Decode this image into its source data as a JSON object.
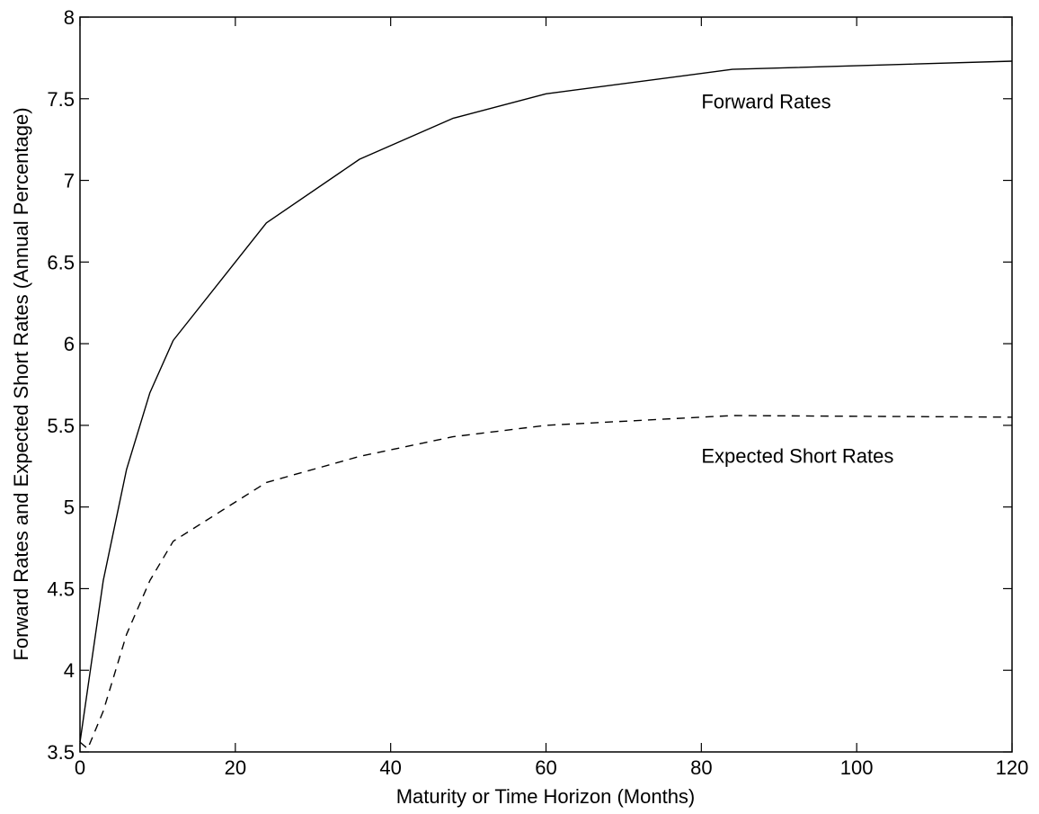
{
  "chart_data": {
    "type": "line",
    "title": "",
    "xlabel": "Maturity or Time Horizon (Months)",
    "ylabel": "Forward Rates and Expected Short Rates (Annual Percentage)",
    "xlim": [
      0,
      120
    ],
    "ylim": [
      3.5,
      8
    ],
    "x_ticks": [
      0,
      20,
      40,
      60,
      80,
      100,
      120
    ],
    "y_ticks": [
      3.5,
      4,
      4.5,
      5,
      5.5,
      6,
      6.5,
      7,
      7.5,
      8
    ],
    "grid": false,
    "series": [
      {
        "name": "Forward Rates",
        "style": "solid",
        "x": [
          0,
          3,
          6,
          9,
          12,
          24,
          36,
          48,
          60,
          84,
          120
        ],
        "y": [
          3.56,
          4.55,
          5.23,
          5.7,
          6.02,
          6.74,
          7.13,
          7.38,
          7.53,
          7.68,
          7.73
        ]
      },
      {
        "name": "Expected Short Rates",
        "style": "dashed",
        "x": [
          0,
          1,
          3,
          6,
          9,
          12,
          24,
          36,
          48,
          60,
          84,
          120
        ],
        "y": [
          3.56,
          3.52,
          3.75,
          4.22,
          4.55,
          4.79,
          5.15,
          5.31,
          5.43,
          5.5,
          5.56,
          5.55
        ]
      }
    ],
    "annotations": [
      {
        "text": "Forward Rates",
        "x": 80,
        "y": 7.44
      },
      {
        "text": "Expected Short Rates",
        "x": 80,
        "y": 5.27
      }
    ],
    "color": "#000000"
  }
}
